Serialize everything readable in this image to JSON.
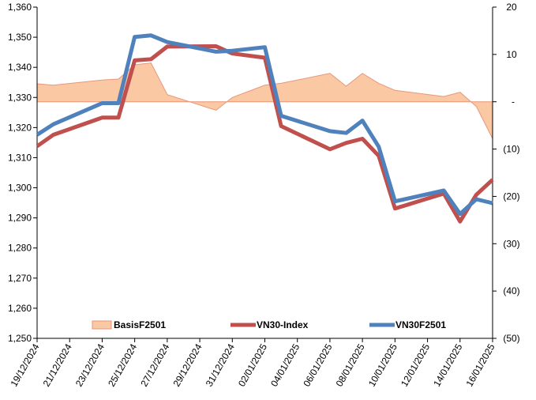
{
  "chart_data": {
    "type": "line",
    "title": "",
    "xlabel": "",
    "ylabel": "",
    "ylim": [
      1250,
      1360
    ],
    "y_ticks": [
      "1,250",
      "1,260",
      "1,270",
      "1,280",
      "1,290",
      "1,300",
      "1,310",
      "1,320",
      "1,330",
      "1,340",
      "1,350",
      "1,360"
    ],
    "y2lim": [
      -50,
      20
    ],
    "y2_ticks": [
      "(50)",
      "(40)",
      "(30)",
      "(20)",
      "(10)",
      "-",
      "10",
      "20"
    ],
    "x_tick_labels": [
      "19/12/2024",
      "21/12/2024",
      "23/12/2024",
      "25/12/2024",
      "27/12/2024",
      "29/12/2024",
      "31/12/2024",
      "02/01/2025",
      "04/01/2025",
      "06/01/2025",
      "08/01/2025",
      "10/01/2025",
      "12/01/2025",
      "14/01/2025",
      "16/01/2025"
    ],
    "x": [
      "19/12/2024",
      "20/12/2024",
      "23/12/2024",
      "24/12/2024",
      "25/12/2024",
      "26/12/2024",
      "27/12/2024",
      "30/12/2024",
      "31/12/2024",
      "02/01/2025",
      "03/01/2025",
      "06/01/2025",
      "07/01/2025",
      "08/01/2025",
      "09/01/2025",
      "10/01/2025",
      "13/01/2025",
      "14/01/2025",
      "15/01/2025",
      "16/01/2025"
    ],
    "grid": false,
    "legend_position": "bottom",
    "series": [
      {
        "name": "BasisF2501",
        "type": "area",
        "axis": "right",
        "color": "#FAC8A3",
        "edge_color": "#E9967A",
        "values": [
          3.8,
          3.5,
          4.6,
          4.8,
          7.8,
          8.2,
          1.5,
          -1.8,
          0.9,
          3.5,
          3.9,
          6.0,
          3.3,
          6.0,
          3.9,
          2.4,
          1.1,
          2.0,
          -1.0,
          -7.8
        ]
      },
      {
        "name": "VN30-Index",
        "type": "line",
        "axis": "left",
        "color": "#C0504D",
        "values": [
          1313.8,
          1317.6,
          1323.3,
          1323.3,
          1342.3,
          1342.7,
          1346.9,
          1347.0,
          1344.6,
          1343.2,
          1320.5,
          1312.8,
          1314.9,
          1316.3,
          1310.6,
          1293.1,
          1298.1,
          1288.8,
          1297.7,
          1302.7
        ]
      },
      {
        "name": "VN30F2501",
        "type": "line",
        "axis": "left",
        "color": "#4F81BD",
        "values": [
          1317.6,
          1321.1,
          1328.1,
          1328.1,
          1350.1,
          1350.6,
          1348.4,
          1345.2,
          1345.5,
          1346.7,
          1323.9,
          1318.8,
          1318.2,
          1322.3,
          1313.6,
          1295.5,
          1299.1,
          1291.3,
          1296.2,
          1294.9
        ]
      }
    ]
  }
}
